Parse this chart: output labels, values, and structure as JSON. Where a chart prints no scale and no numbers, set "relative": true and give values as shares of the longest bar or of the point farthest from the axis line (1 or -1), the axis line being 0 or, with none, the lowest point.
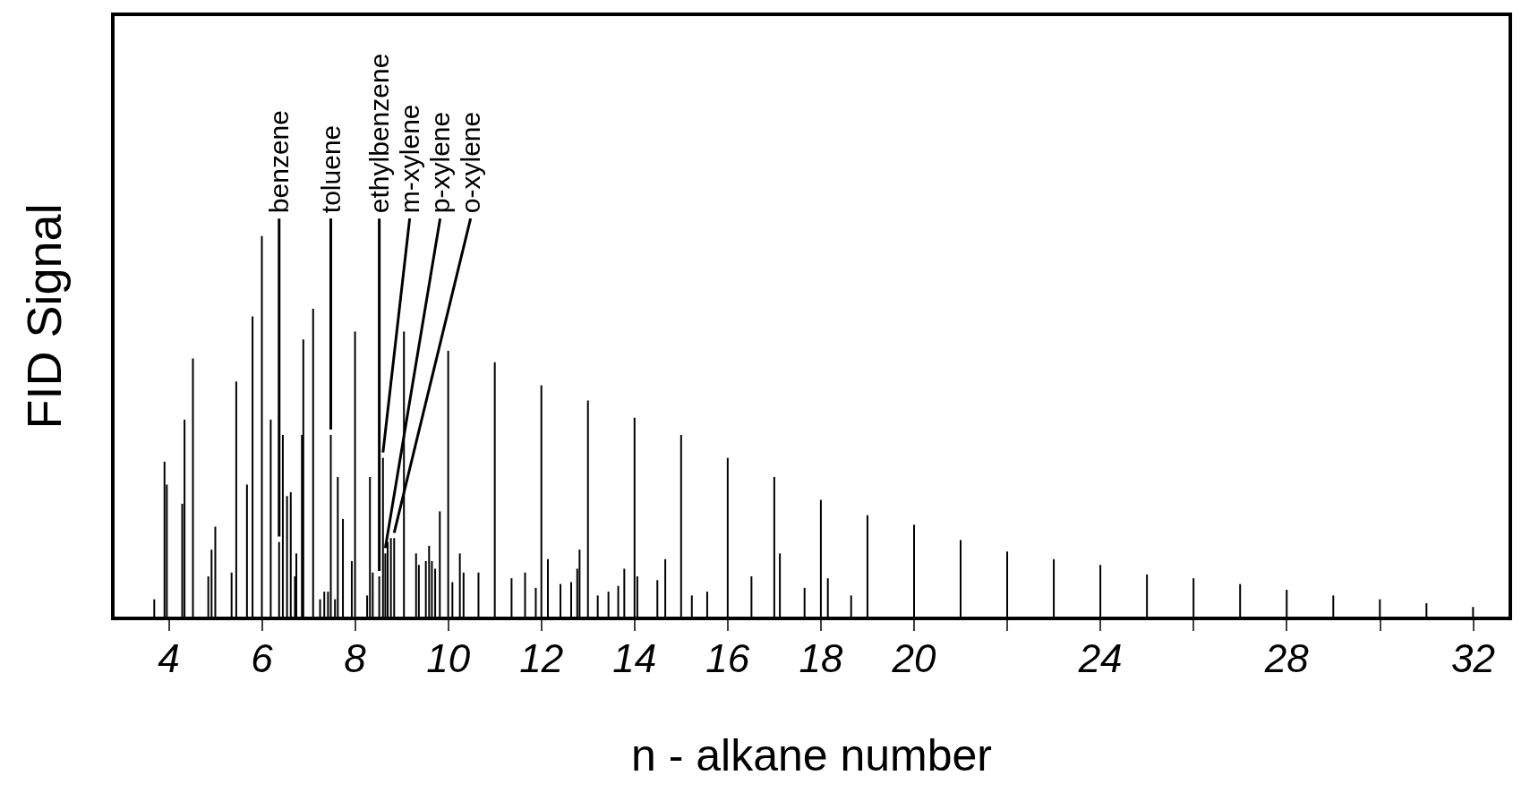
{
  "chart_data": {
    "type": "bar",
    "relative": true,
    "xlabel": "n - alkane number",
    "ylabel": "FID Signal",
    "color": "#000000",
    "xlim": [
      2.8,
      32.8
    ],
    "xticks": [
      4,
      6,
      8,
      10,
      12,
      14,
      16,
      18,
      20,
      {
        "value": 22,
        "label": null
      },
      24,
      {
        "value": 26,
        "label": null
      },
      28,
      {
        "value": 30,
        "label": null
      },
      32
    ],
    "x": [
      3.69,
      3.91,
      3.96,
      4.29,
      4.34,
      4.52,
      4.85,
      4.92,
      5.0,
      5.35,
      5.45,
      5.68,
      5.8,
      6.0,
      6.19,
      6.37,
      6.45,
      6.54,
      6.62,
      6.71,
      6.74,
      6.86,
      6.89,
      7.1,
      7.25,
      7.34,
      7.42,
      7.48,
      7.57,
      7.63,
      7.74,
      7.93,
      8.0,
      8.26,
      8.32,
      8.38,
      8.52,
      8.6,
      8.65,
      8.7,
      8.77,
      8.84,
      9.05,
      9.31,
      9.37,
      9.52,
      9.59,
      9.65,
      9.72,
      9.82,
      10,
      10.09,
      10.25,
      10.33,
      10.65,
      11,
      11.36,
      11.65,
      11.88,
      12,
      12.14,
      12.41,
      12.64,
      12.77,
      12.82,
      13,
      13.21,
      13.44,
      13.65,
      13.78,
      14,
      14.06,
      14.49,
      14.66,
      15,
      15.23,
      15.56,
      16,
      16.51,
      17,
      17.12,
      17.65,
      18,
      18.15,
      18.65,
      19,
      20,
      21,
      22,
      23,
      24,
      25,
      26,
      27,
      28,
      29,
      30,
      31,
      32
    ],
    "values": [
      0.05,
      0.41,
      0.35,
      0.3,
      0.52,
      0.68,
      0.11,
      0.18,
      0.24,
      0.12,
      0.62,
      0.35,
      0.79,
      1.0,
      0.52,
      0.2,
      0.48,
      0.32,
      0.33,
      0.11,
      0.17,
      0.48,
      0.73,
      0.81,
      0.05,
      0.07,
      0.07,
      0.48,
      0.05,
      0.37,
      0.26,
      0.15,
      0.75,
      0.06,
      0.37,
      0.12,
      0.11,
      0.42,
      0.17,
      0.2,
      0.21,
      0.21,
      0.75,
      0.17,
      0.14,
      0.15,
      0.19,
      0.15,
      0.13,
      0.28,
      0.7,
      0.095,
      0.17,
      0.12,
      0.12,
      0.67,
      0.105,
      0.12,
      0.08,
      0.61,
      0.155,
      0.09,
      0.095,
      0.13,
      0.18,
      0.57,
      0.06,
      0.07,
      0.085,
      0.13,
      0.525,
      0.11,
      0.1,
      0.155,
      0.48,
      0.06,
      0.07,
      0.42,
      0.11,
      0.37,
      0.17,
      0.08,
      0.31,
      0.105,
      0.06,
      0.27,
      0.245,
      0.205,
      0.175,
      0.155,
      0.14,
      0.115,
      0.105,
      0.09,
      0.075,
      0.06,
      0.05,
      0.04,
      0.03
    ],
    "annotations": [
      {
        "text": "benzene",
        "x": 6.37,
        "y": 0.2
      },
      {
        "text": "toluene",
        "x": 7.48,
        "y": 0.48
      },
      {
        "text": "ethylbenzene",
        "x": 8.52,
        "y": 0.11
      },
      {
        "text": "m-xylene",
        "x": 8.6,
        "y": 0.42
      },
      {
        "text": "p-xylene",
        "x": 8.65,
        "y": 0.17
      },
      {
        "text": "o-xylene",
        "x": 8.84,
        "y": 0.21
      }
    ]
  }
}
